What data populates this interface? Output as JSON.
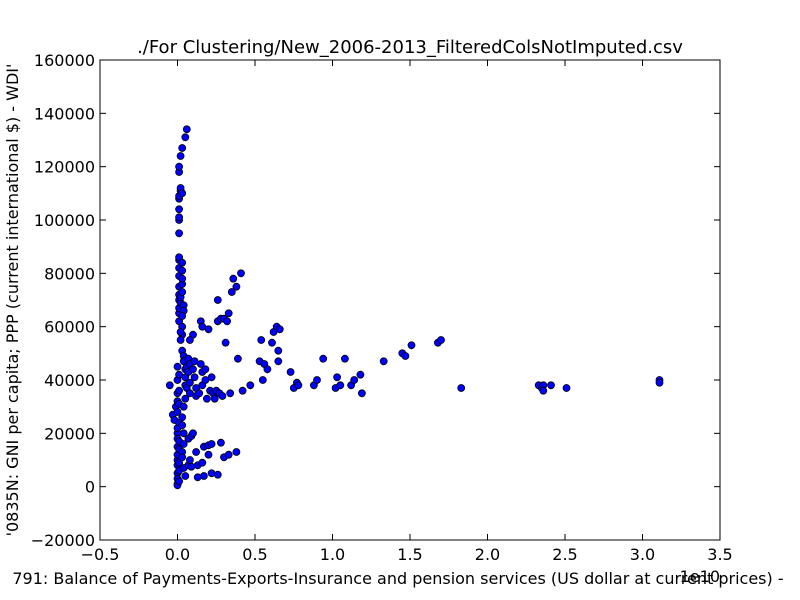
{
  "chart_data": {
    "type": "scatter",
    "title": "./For Clustering/New_2006-2013_FilteredColsNotImputed.csv",
    "xlabel": "791: Balance of Payments-Exports-Insurance and pension services (US dollar at current prices) -",
    "ylabel": "'0835N: GNI per capita; PPP  (current international $) - WDI'",
    "x_offset_label": "1e10",
    "xlim": [
      -0.5,
      3.5
    ],
    "ylim": [
      -20000,
      160000
    ],
    "xticks": [
      -0.5,
      0.0,
      0.5,
      1.0,
      1.5,
      2.0,
      2.5,
      3.0,
      3.5
    ],
    "xtick_labels": [
      "−0.5",
      "0.0",
      "0.5",
      "1.0",
      "1.5",
      "2.0",
      "2.5",
      "3.0",
      "3.5"
    ],
    "yticks": [
      -20000,
      0,
      20000,
      40000,
      60000,
      80000,
      100000,
      120000,
      140000,
      160000
    ],
    "ytick_labels": [
      "−20000",
      "0",
      "20000",
      "40000",
      "60000",
      "80000",
      "100000",
      "120000",
      "140000",
      "160000"
    ],
    "grid": false,
    "legend": "none",
    "marker_color": "#0000ff",
    "marker_edge": "#000000",
    "points": [
      [
        -0.05,
        38000
      ],
      [
        -0.03,
        27000
      ],
      [
        -0.02,
        25000
      ],
      [
        -0.01,
        30000
      ],
      [
        0.0,
        35000
      ],
      [
        0.0,
        20000
      ],
      [
        0.0,
        15000
      ],
      [
        0.0,
        10000
      ],
      [
        0.0,
        5000
      ],
      [
        0.0,
        1000
      ],
      [
        0.0,
        500
      ],
      [
        0.0,
        3000
      ],
      [
        0.0,
        8000
      ],
      [
        0.0,
        12000
      ],
      [
        0.0,
        18000
      ],
      [
        0.0,
        22000
      ],
      [
        0.0,
        28000
      ],
      [
        0.0,
        32000
      ],
      [
        0.0,
        40000
      ],
      [
        0.0,
        45000
      ],
      [
        0.01,
        2000
      ],
      [
        0.01,
        6000
      ],
      [
        0.01,
        9000
      ],
      [
        0.01,
        14000
      ],
      [
        0.01,
        17000
      ],
      [
        0.01,
        24000
      ],
      [
        0.01,
        31000
      ],
      [
        0.01,
        36000
      ],
      [
        0.01,
        42000
      ],
      [
        0.01,
        62000
      ],
      [
        0.01,
        65000
      ],
      [
        0.01,
        67000
      ],
      [
        0.01,
        70000
      ],
      [
        0.01,
        72000
      ],
      [
        0.01,
        75000
      ],
      [
        0.01,
        79000
      ],
      [
        0.01,
        82000
      ],
      [
        0.01,
        85000
      ],
      [
        0.01,
        86000
      ],
      [
        0.01,
        95000
      ],
      [
        0.01,
        100000
      ],
      [
        0.01,
        101000
      ],
      [
        0.01,
        104000
      ],
      [
        0.01,
        108000
      ],
      [
        0.01,
        109000
      ],
      [
        0.01,
        118000
      ],
      [
        0.01,
        120000
      ],
      [
        0.02,
        111000
      ],
      [
        0.02,
        112000
      ],
      [
        0.03,
        110000
      ],
      [
        0.02,
        69000
      ],
      [
        0.02,
        71000
      ],
      [
        0.03,
        73000
      ],
      [
        0.03,
        76000
      ],
      [
        0.03,
        78000
      ],
      [
        0.03,
        81000
      ],
      [
        0.03,
        84000
      ],
      [
        0.04,
        68000
      ],
      [
        0.04,
        66000
      ],
      [
        0.03,
        64000
      ],
      [
        0.03,
        60000
      ],
      [
        0.03,
        57000
      ],
      [
        0.02,
        58000
      ],
      [
        0.02,
        55000
      ],
      [
        0.03,
        51000
      ],
      [
        0.04,
        49000
      ],
      [
        0.04,
        47000
      ],
      [
        0.05,
        44000
      ],
      [
        0.05,
        41000
      ],
      [
        0.05,
        38000
      ],
      [
        0.05,
        33000
      ],
      [
        0.04,
        30000
      ],
      [
        0.03,
        26000
      ],
      [
        0.03,
        23000
      ],
      [
        0.04,
        20000
      ],
      [
        0.04,
        16000
      ],
      [
        0.03,
        13000
      ],
      [
        0.03,
        11000
      ],
      [
        0.04,
        7000
      ],
      [
        0.05,
        4000
      ],
      [
        0.02,
        124000
      ],
      [
        0.03,
        127000
      ],
      [
        0.05,
        131000
      ],
      [
        0.06,
        134000
      ],
      [
        0.06,
        45000
      ],
      [
        0.06,
        37000
      ],
      [
        0.07,
        48000
      ],
      [
        0.07,
        43000
      ],
      [
        0.08,
        46000
      ],
      [
        0.08,
        39000
      ],
      [
        0.08,
        35000
      ],
      [
        0.07,
        18000
      ],
      [
        0.07,
        8000
      ],
      [
        0.08,
        10000
      ],
      [
        0.09,
        7500
      ],
      [
        0.09,
        19000
      ],
      [
        0.1,
        20000
      ],
      [
        0.1,
        57000
      ],
      [
        0.08,
        55000
      ],
      [
        0.1,
        44000
      ],
      [
        0.11,
        41000
      ],
      [
        0.11,
        47000
      ],
      [
        0.12,
        37000
      ],
      [
        0.12,
        34000
      ],
      [
        0.12,
        13000
      ],
      [
        0.13,
        8000
      ],
      [
        0.13,
        3500
      ],
      [
        0.14,
        35000
      ],
      [
        0.15,
        46000
      ],
      [
        0.15,
        62000
      ],
      [
        0.16,
        60000
      ],
      [
        0.16,
        43000
      ],
      [
        0.16,
        38000
      ],
      [
        0.16,
        9000
      ],
      [
        0.17,
        4000
      ],
      [
        0.17,
        15000
      ],
      [
        0.18,
        40000
      ],
      [
        0.18,
        44000
      ],
      [
        0.19,
        33000
      ],
      [
        0.2,
        59000
      ],
      [
        0.2,
        15500
      ],
      [
        0.2,
        12000
      ],
      [
        0.21,
        36000
      ],
      [
        0.22,
        41000
      ],
      [
        0.22,
        16000
      ],
      [
        0.22,
        5000
      ],
      [
        0.23,
        35000
      ],
      [
        0.24,
        33000
      ],
      [
        0.25,
        36000
      ],
      [
        0.26,
        4500
      ],
      [
        0.26,
        70000
      ],
      [
        0.26,
        62000
      ],
      [
        0.27,
        35000
      ],
      [
        0.28,
        63000
      ],
      [
        0.28,
        16500
      ],
      [
        0.29,
        34000
      ],
      [
        0.3,
        63000
      ],
      [
        0.3,
        11000
      ],
      [
        0.31,
        54000
      ],
      [
        0.32,
        62000
      ],
      [
        0.33,
        12000
      ],
      [
        0.33,
        65000
      ],
      [
        0.34,
        35000
      ],
      [
        0.35,
        73000
      ],
      [
        0.36,
        78000
      ],
      [
        0.38,
        75000
      ],
      [
        0.38,
        13000
      ],
      [
        0.39,
        48000
      ],
      [
        0.41,
        80000
      ],
      [
        0.42,
        36000
      ],
      [
        0.47,
        38000
      ],
      [
        0.53,
        47000
      ],
      [
        0.54,
        55000
      ],
      [
        0.55,
        40000
      ],
      [
        0.56,
        46000
      ],
      [
        0.58,
        44000
      ],
      [
        0.61,
        54000
      ],
      [
        0.62,
        58000
      ],
      [
        0.64,
        60000
      ],
      [
        0.66,
        59000
      ],
      [
        0.65,
        51000
      ],
      [
        0.65,
        47000
      ],
      [
        0.73,
        43000
      ],
      [
        0.75,
        37000
      ],
      [
        0.77,
        39000
      ],
      [
        0.78,
        38000
      ],
      [
        0.88,
        38000
      ],
      [
        0.9,
        40000
      ],
      [
        0.94,
        48000
      ],
      [
        1.02,
        37000
      ],
      [
        1.03,
        41000
      ],
      [
        1.05,
        38000
      ],
      [
        1.08,
        48000
      ],
      [
        1.12,
        38000
      ],
      [
        1.14,
        40000
      ],
      [
        1.18,
        42000
      ],
      [
        1.19,
        35000
      ],
      [
        1.33,
        47000
      ],
      [
        1.45,
        50000
      ],
      [
        1.47,
        49000
      ],
      [
        1.51,
        53000
      ],
      [
        1.68,
        54000
      ],
      [
        1.7,
        55000
      ],
      [
        1.83,
        37000
      ],
      [
        2.33,
        38000
      ],
      [
        2.35,
        37000
      ],
      [
        2.36,
        38000
      ],
      [
        2.36,
        36000
      ],
      [
        2.41,
        38000
      ],
      [
        2.51,
        37000
      ],
      [
        3.11,
        40000
      ],
      [
        3.11,
        39000
      ]
    ]
  }
}
